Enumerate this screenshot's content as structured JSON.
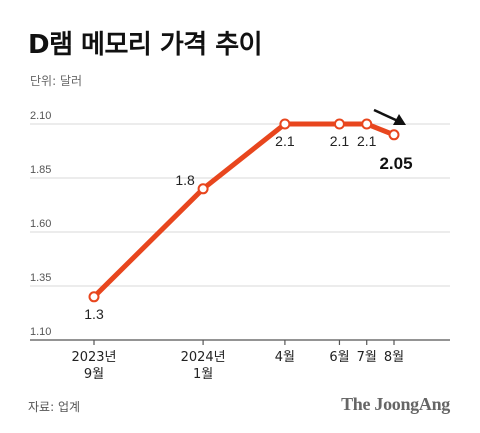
{
  "title": "D램 메모리 가격 추이",
  "unit_label": "단위: 달러",
  "source": "자료: 업계",
  "brand": "The JoongAng",
  "colors": {
    "line": "#e8461e",
    "grid": "#d8d8d8",
    "axis": "#555555",
    "arrow": "#111111"
  },
  "chart_data": {
    "type": "line",
    "x": [
      "2023년 9월",
      "2024년 1월",
      "4월",
      "6월",
      "7월",
      "8월"
    ],
    "x_tick_lines": [
      [
        "2023년",
        "9월"
      ],
      [
        "2024년",
        "1월"
      ],
      [
        "4월"
      ],
      [
        "6월"
      ],
      [
        "7월"
      ],
      [
        "8월"
      ]
    ],
    "x_month_index": [
      0,
      4,
      7,
      9,
      10,
      11
    ],
    "series": [
      {
        "values": [
          1.3,
          1.8,
          2.1,
          2.1,
          2.1,
          2.05
        ]
      }
    ],
    "data_labels": [
      "1.3",
      "1.8",
      "2.1",
      "2.1",
      "2.1",
      "2.05"
    ],
    "ylim": [
      1.1,
      2.1
    ],
    "yticks": [
      "1.10",
      "1.35",
      "1.60",
      "1.85",
      "2.10"
    ],
    "grid": true,
    "trend_arrow": "down"
  }
}
